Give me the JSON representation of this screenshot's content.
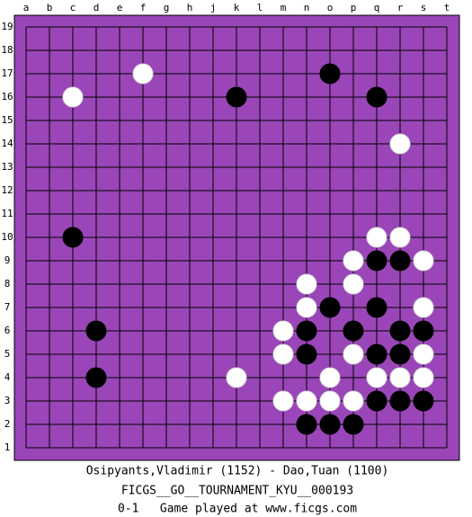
{
  "board": {
    "columns": [
      "a",
      "b",
      "c",
      "d",
      "e",
      "f",
      "g",
      "h",
      "j",
      "k",
      "l",
      "m",
      "n",
      "o",
      "p",
      "q",
      "r",
      "s",
      "t"
    ],
    "rows": [
      19,
      18,
      17,
      16,
      15,
      14,
      13,
      12,
      11,
      10,
      9,
      8,
      7,
      6,
      5,
      4,
      3,
      2,
      1
    ],
    "stones": [
      {
        "color": "white",
        "col": "f",
        "row": 17
      },
      {
        "color": "white",
        "col": "c",
        "row": 16
      },
      {
        "color": "white",
        "col": "r",
        "row": 14
      },
      {
        "color": "white",
        "col": "q",
        "row": 10
      },
      {
        "color": "white",
        "col": "r",
        "row": 10
      },
      {
        "color": "white",
        "col": "p",
        "row": 9
      },
      {
        "color": "white",
        "col": "s",
        "row": 9
      },
      {
        "color": "white",
        "col": "n",
        "row": 8
      },
      {
        "color": "white",
        "col": "p",
        "row": 8
      },
      {
        "color": "white",
        "col": "n",
        "row": 7
      },
      {
        "color": "white",
        "col": "s",
        "row": 7
      },
      {
        "color": "white",
        "col": "m",
        "row": 6
      },
      {
        "color": "white",
        "col": "m",
        "row": 5
      },
      {
        "color": "white",
        "col": "p",
        "row": 5
      },
      {
        "color": "white",
        "col": "s",
        "row": 5
      },
      {
        "color": "white",
        "col": "k",
        "row": 4
      },
      {
        "color": "white",
        "col": "o",
        "row": 4
      },
      {
        "color": "white",
        "col": "q",
        "row": 4
      },
      {
        "color": "white",
        "col": "r",
        "row": 4
      },
      {
        "color": "white",
        "col": "s",
        "row": 4
      },
      {
        "color": "white",
        "col": "m",
        "row": 3
      },
      {
        "color": "white",
        "col": "n",
        "row": 3
      },
      {
        "color": "white",
        "col": "o",
        "row": 3
      },
      {
        "color": "white",
        "col": "p",
        "row": 3
      },
      {
        "color": "black",
        "col": "o",
        "row": 17
      },
      {
        "color": "black",
        "col": "k",
        "row": 16
      },
      {
        "color": "black",
        "col": "q",
        "row": 16
      },
      {
        "color": "black",
        "col": "c",
        "row": 10
      },
      {
        "color": "black",
        "col": "q",
        "row": 9
      },
      {
        "color": "black",
        "col": "r",
        "row": 9
      },
      {
        "color": "black",
        "col": "o",
        "row": 7
      },
      {
        "color": "black",
        "col": "q",
        "row": 7
      },
      {
        "color": "black",
        "col": "d",
        "row": 6
      },
      {
        "color": "black",
        "col": "n",
        "row": 6
      },
      {
        "color": "black",
        "col": "p",
        "row": 6
      },
      {
        "color": "black",
        "col": "r",
        "row": 6
      },
      {
        "color": "black",
        "col": "s",
        "row": 6
      },
      {
        "color": "black",
        "col": "n",
        "row": 5
      },
      {
        "color": "black",
        "col": "q",
        "row": 5
      },
      {
        "color": "black",
        "col": "r",
        "row": 5
      },
      {
        "color": "black",
        "col": "d",
        "row": 4
      },
      {
        "color": "black",
        "col": "q",
        "row": 3
      },
      {
        "color": "black",
        "col": "r",
        "row": 3
      },
      {
        "color": "black",
        "col": "s",
        "row": 3
      },
      {
        "color": "black",
        "col": "n",
        "row": 2
      },
      {
        "color": "black",
        "col": "o",
        "row": 2
      },
      {
        "color": "black",
        "col": "p",
        "row": 2
      }
    ]
  },
  "caption": {
    "players": "Osipyants,Vladimir (1152) - Dao,Tuan (1100)",
    "event": "FICGS__GO__TOURNAMENT_KYU__000193",
    "result": "0-1   Game played at www.ficgs.com"
  }
}
